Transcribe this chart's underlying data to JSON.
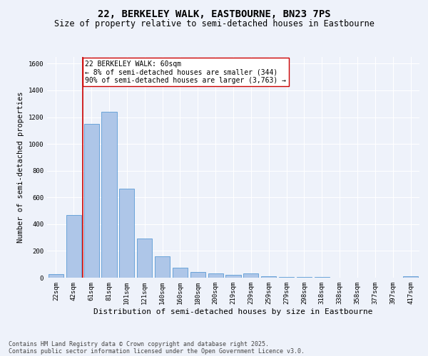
{
  "title": "22, BERKELEY WALK, EASTBOURNE, BN23 7PS",
  "subtitle": "Size of property relative to semi-detached houses in Eastbourne",
  "xlabel": "Distribution of semi-detached houses by size in Eastbourne",
  "ylabel": "Number of semi-detached properties",
  "categories": [
    "22sqm",
    "42sqm",
    "61sqm",
    "81sqm",
    "101sqm",
    "121sqm",
    "140sqm",
    "160sqm",
    "180sqm",
    "200sqm",
    "219sqm",
    "239sqm",
    "259sqm",
    "279sqm",
    "298sqm",
    "318sqm",
    "338sqm",
    "358sqm",
    "377sqm",
    "397sqm",
    "417sqm"
  ],
  "values": [
    25,
    470,
    1150,
    1240,
    665,
    295,
    160,
    75,
    40,
    30,
    20,
    30,
    10,
    5,
    5,
    3,
    2,
    2,
    1,
    1,
    10
  ],
  "bar_color": "#aec6e8",
  "bar_edge_color": "#5b9bd5",
  "marker_line_index": 2,
  "marker_line_color": "#cc0000",
  "annotation_text": "22 BERKELEY WALK: 60sqm\n← 8% of semi-detached houses are smaller (344)\n90% of semi-detached houses are larger (3,763) →",
  "annotation_box_color": "#ffffff",
  "annotation_box_edge_color": "#cc0000",
  "ylim": [
    0,
    1650
  ],
  "yticks": [
    0,
    200,
    400,
    600,
    800,
    1000,
    1200,
    1400,
    1600
  ],
  "footnote1": "Contains HM Land Registry data © Crown copyright and database right 2025.",
  "footnote2": "Contains public sector information licensed under the Open Government Licence v3.0.",
  "background_color": "#eef2fa",
  "grid_color": "#ffffff",
  "title_fontsize": 10,
  "subtitle_fontsize": 8.5,
  "xlabel_fontsize": 8,
  "ylabel_fontsize": 7.5,
  "tick_fontsize": 6.5,
  "annotation_fontsize": 7,
  "footnote_fontsize": 6
}
